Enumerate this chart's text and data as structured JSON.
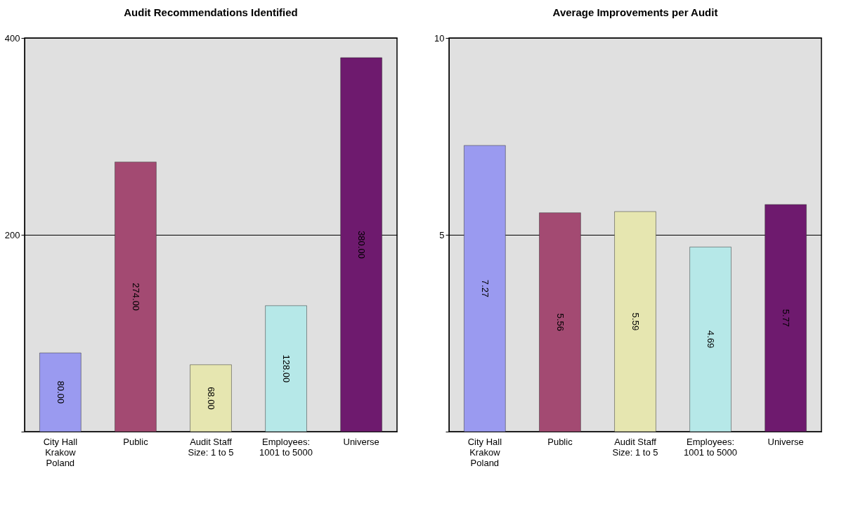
{
  "chart_data": [
    {
      "type": "bar",
      "title": "Audit Recommendations Identified",
      "categories": [
        "City Hall Krakow Poland",
        "Public",
        "Audit Staff Size: 1 to 5",
        "Employees: 1001 to 5000",
        "Universe"
      ],
      "values": [
        80,
        274,
        68,
        128,
        380
      ],
      "value_labels": [
        "80.00",
        "274.00",
        "68.00",
        "128.00",
        "380.00"
      ],
      "colors": [
        "#9a9af0",
        "#a34a72",
        "#e6e6b0",
        "#b6e8e8",
        "#6e1a6e"
      ],
      "ylim": [
        0,
        400
      ],
      "yticks": [
        {
          "value": 0,
          "label": null
        },
        200,
        400
      ],
      "grid": "y"
    },
    {
      "type": "bar",
      "title": "Average Improvements per Audit",
      "categories": [
        "City Hall Krakow Poland",
        "Public",
        "Audit Staff Size: 1 to 5",
        "Employees: 1001 to 5000",
        "Universe"
      ],
      "values": [
        7.27,
        5.56,
        5.59,
        4.69,
        5.77
      ],
      "value_labels": [
        "7.27",
        "5.56",
        "5.59",
        "4.69",
        "5.77"
      ],
      "colors": [
        "#9a9af0",
        "#a34a72",
        "#e6e6b0",
        "#b6e8e8",
        "#6e1a6e"
      ],
      "ylim": [
        0,
        10
      ],
      "yticks": [
        {
          "value": 0,
          "label": null
        },
        5,
        10
      ],
      "grid": "y"
    }
  ]
}
